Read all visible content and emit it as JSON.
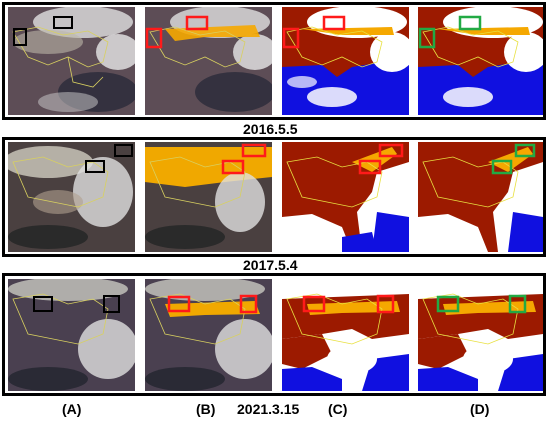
{
  "figure": {
    "rows": [
      {
        "date": "2016.5.5"
      },
      {
        "date": "2017.5.4"
      },
      {
        "date": "2021.3.15"
      }
    ],
    "column_labels": [
      "(A)",
      "(B)",
      "(C)",
      "(D)"
    ],
    "colors": {
      "box_a": "#000000",
      "box_b": "#ff1a1a",
      "box_c": "#ff1a1a",
      "box_d": "#22aa44",
      "dust": "#f5a800",
      "land": "#9c1a00",
      "sea": "#1010e0",
      "cloud": "#ffffff",
      "border": "#e8e040"
    }
  }
}
